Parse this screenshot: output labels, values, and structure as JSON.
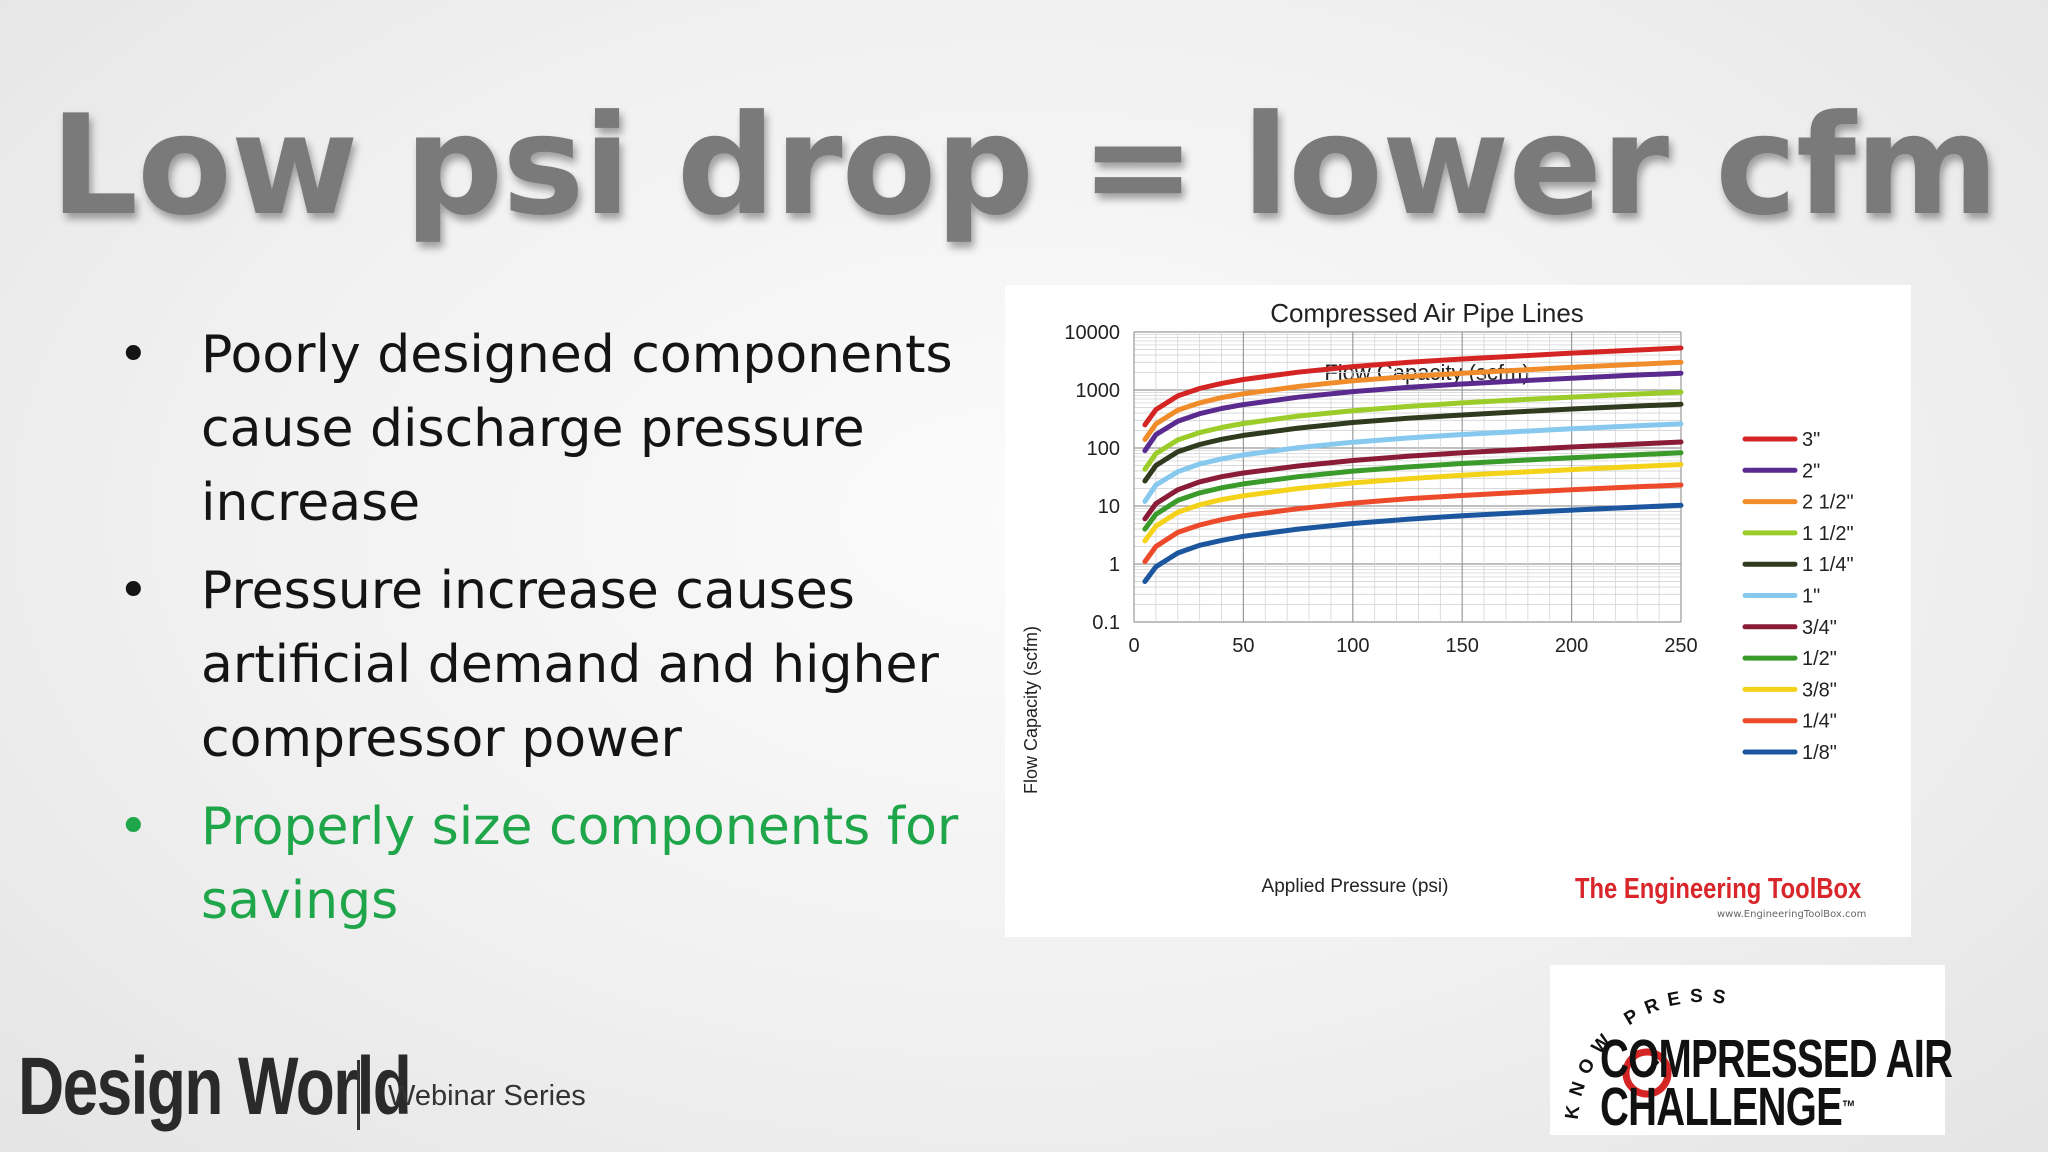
{
  "slide": {
    "title": "Low psi drop = lower cfm",
    "bullets": [
      {
        "marker": "•",
        "text": "Poorly designed components cause discharge pressure increase"
      },
      {
        "marker": "•",
        "text": "Pressure increase causes artificial demand and higher compressor power"
      },
      {
        "marker": "•",
        "text": "Properly size components for savings"
      }
    ],
    "colors": {
      "title": "#7a7a7a",
      "bullet_text": "#141414",
      "highlight": "#1fa64a"
    }
  },
  "chart_data": {
    "type": "line",
    "title": "Compressed Air Pipe Lines",
    "subtitle": "Flow Capacity (scfm)",
    "xlabel": "Applied Pressure (psi)",
    "ylabel": "Flow Capacity (scfm)",
    "xlim": [
      0,
      250
    ],
    "ylim": [
      0.1,
      10000
    ],
    "yscale": "log",
    "x_ticks": [
      "0",
      "50",
      "100",
      "150",
      "200",
      "250"
    ],
    "y_ticks": [
      "0.1",
      "1",
      "10",
      "100",
      "1000",
      "10000"
    ],
    "grid": true,
    "legend_position": "right",
    "x": [
      5,
      10,
      20,
      30,
      40,
      50,
      75,
      100,
      125,
      150,
      175,
      200,
      225,
      250
    ],
    "series": [
      {
        "name": "3\"",
        "color": "#d42424",
        "values": [
          250,
          460,
          790,
          1060,
          1300,
          1520,
          2030,
          2530,
          2990,
          3420,
          3840,
          4330,
          4800,
          5300
        ]
      },
      {
        "name": "2\"",
        "color": "#5b2a8e",
        "values": [
          90,
          170,
          290,
          390,
          480,
          560,
          750,
          940,
          1110,
          1270,
          1430,
          1600,
          1780,
          1950
        ]
      },
      {
        "name": "2 1/2\"",
        "color": "#f08c2a",
        "values": [
          140,
          260,
          450,
          600,
          740,
          860,
          1150,
          1440,
          1700,
          1950,
          2190,
          2450,
          2720,
          3000
        ]
      },
      {
        "name": "1 1/2\"",
        "color": "#9ccc2a",
        "values": [
          43,
          80,
          138,
          184,
          226,
          265,
          355,
          440,
          520,
          600,
          675,
          755,
          835,
          920
        ]
      },
      {
        "name": "1 1/4\"",
        "color": "#2f3a1e",
        "values": [
          27,
          50,
          86,
          115,
          141,
          165,
          220,
          275,
          325,
          370,
          420,
          470,
          520,
          570
        ]
      },
      {
        "name": "1\"",
        "color": "#86c8ee",
        "values": [
          12,
          23,
          39,
          53,
          65,
          76,
          101,
          126,
          149,
          171,
          192,
          215,
          238,
          260
        ]
      },
      {
        "name": "3/4\"",
        "color": "#8a1c38",
        "values": [
          6,
          11,
          19,
          26,
          32,
          37,
          49,
          61,
          72,
          83,
          93,
          104,
          115,
          127
        ]
      },
      {
        "name": "1/2\"",
        "color": "#3a9a2a",
        "values": [
          4,
          7.2,
          12.5,
          16.8,
          20.6,
          24,
          32,
          40,
          47,
          54,
          61,
          68,
          75,
          83
        ]
      },
      {
        "name": "3/8\"",
        "color": "#f5d21a",
        "values": [
          2.5,
          4.5,
          7.8,
          10.5,
          12.9,
          15,
          20,
          25,
          29.5,
          34,
          38,
          42.5,
          47,
          52
        ]
      },
      {
        "name": "1/4\"",
        "color": "#ec4a2a",
        "values": [
          1.1,
          2.0,
          3.5,
          4.7,
          5.8,
          6.8,
          9.0,
          11.2,
          13.3,
          15.2,
          17.1,
          19.1,
          21.1,
          23
        ]
      },
      {
        "name": "1/8\"",
        "color": "#1c569e",
        "values": [
          0.5,
          0.9,
          1.55,
          2.1,
          2.55,
          3.0,
          4.0,
          5.0,
          5.9,
          6.8,
          7.6,
          8.5,
          9.4,
          10.3
        ]
      }
    ]
  },
  "chart_credit": {
    "name": "The Engineering ToolBox",
    "url": "www.EngineeringToolBox.com"
  },
  "footer": {
    "brand": "Design World",
    "subtitle": "Webinar Series"
  },
  "partner_logo": {
    "arc_text": "KNOW PRESSURE",
    "line1": "COMPRESSED AIR",
    "line2": "CHALLENGE",
    "trademark": "™"
  }
}
